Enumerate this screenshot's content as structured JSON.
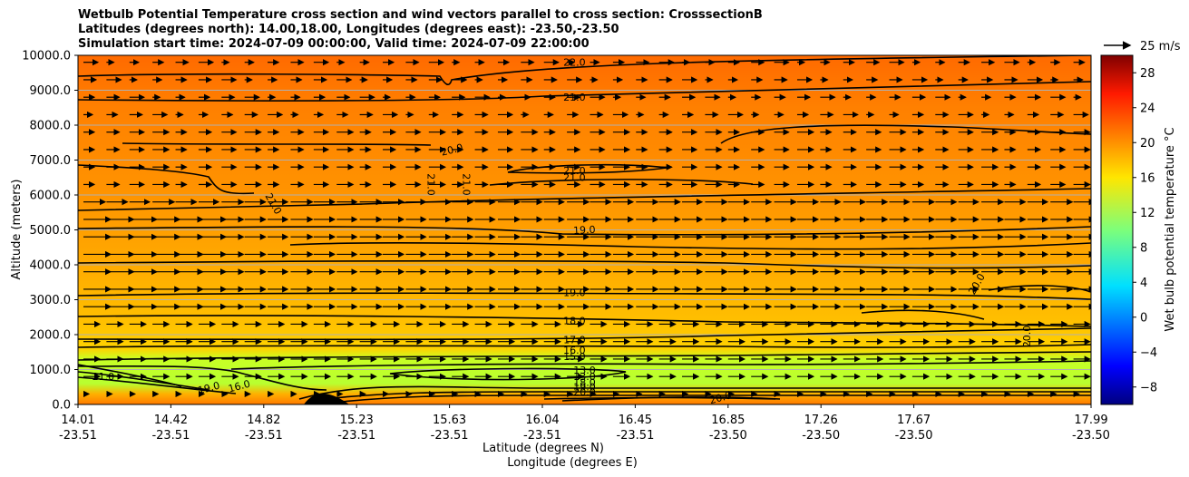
{
  "chart_data": {
    "type": "contour",
    "title_lines": [
      "Wetbulb Potential Temperature cross section and wind vectors parallel to cross section: CrosssectionB",
      "Latitudes (degrees north): 14.00,18.00, Longitudes (degrees east): -23.50,-23.50",
      "Simulation start time: 2024-07-09 00:00:00, Valid time: 2024-07-09 22:00:00"
    ],
    "ylabel": "Altitude (meters)",
    "xlabel_lat": "Latitude (degrees N)",
    "xlabel_lon": "Longitude (degrees E)",
    "ylim": [
      0,
      10000
    ],
    "y_ticks": [
      "0.0",
      "1000.0",
      "2000.0",
      "3000.0",
      "4000.0",
      "5000.0",
      "6000.0",
      "7000.0",
      "8000.0",
      "9000.0",
      "10000.0"
    ],
    "x_ticks": [
      {
        "lat": "14.01",
        "lon": "-23.51"
      },
      {
        "lat": "14.42",
        "lon": "-23.51"
      },
      {
        "lat": "14.82",
        "lon": "-23.51"
      },
      {
        "lat": "15.23",
        "lon": "-23.51"
      },
      {
        "lat": "15.63",
        "lon": "-23.51"
      },
      {
        "lat": "16.04",
        "lon": "-23.51"
      },
      {
        "lat": "16.45",
        "lon": "-23.51"
      },
      {
        "lat": "16.85",
        "lon": "-23.50"
      },
      {
        "lat": "17.26",
        "lon": "-23.50"
      },
      {
        "lat": "17.67",
        "lon": "-23.50"
      },
      {
        "lat": "17.99",
        "lon": "-23.50"
      }
    ],
    "colorbar": {
      "label": "Wet bulb potential temperature °C",
      "range": [
        -10,
        30
      ],
      "ticks": [
        "−8",
        "−4",
        "0",
        "4",
        "8",
        "12",
        "16",
        "20",
        "24",
        "28"
      ],
      "tick_values": [
        -8,
        -4,
        0,
        4,
        8,
        12,
        16,
        20,
        24,
        28
      ],
      "colormap": "jet"
    },
    "vector_key": "25 m/s",
    "contour_labels": [
      {
        "text": "22.0",
        "x": 0.49,
        "alt": 9700,
        "rot": 0
      },
      {
        "text": "21.0",
        "x": 0.49,
        "alt": 8700,
        "rot": 0
      },
      {
        "text": "20.0",
        "x": 0.37,
        "alt": 7200,
        "rot": -14
      },
      {
        "text": "21.0",
        "x": 0.345,
        "alt": 6300,
        "rot": 90
      },
      {
        "text": "21.0",
        "x": 0.38,
        "alt": 6300,
        "rot": 90
      },
      {
        "text": "21.0",
        "x": 0.49,
        "alt": 6600,
        "rot": 0
      },
      {
        "text": "21.0",
        "x": 0.49,
        "alt": 6400,
        "rot": 0
      },
      {
        "text": "21.0",
        "x": 0.19,
        "alt": 5700,
        "rot": 60
      },
      {
        "text": "19.0",
        "x": 0.5,
        "alt": 4900,
        "rot": -3
      },
      {
        "text": "20.0",
        "x": 0.89,
        "alt": 3400,
        "rot": -60
      },
      {
        "text": "19.0",
        "x": 0.49,
        "alt": 3100,
        "rot": 0
      },
      {
        "text": "18.0",
        "x": 0.49,
        "alt": 2300,
        "rot": 0
      },
      {
        "text": "20.0",
        "x": 0.94,
        "alt": 1950,
        "rot": -90
      },
      {
        "text": "17.0",
        "x": 0.49,
        "alt": 1750,
        "rot": 0
      },
      {
        "text": "16.0",
        "x": 0.49,
        "alt": 1450,
        "rot": 0
      },
      {
        "text": "15.0",
        "x": 0.49,
        "alt": 1270,
        "rot": 0
      },
      {
        "text": "13.0",
        "x": 0.5,
        "alt": 880,
        "rot": 0
      },
      {
        "text": "13.0",
        "x": 0.5,
        "alt": 700,
        "rot": 0
      },
      {
        "text": "18.0",
        "x": 0.5,
        "alt": 530,
        "rot": 0
      },
      {
        "text": "19.0",
        "x": 0.5,
        "alt": 400,
        "rot": 0
      },
      {
        "text": "20.0",
        "x": 0.5,
        "alt": 260,
        "rot": 0
      },
      {
        "text": "21.0",
        "x": 0.025,
        "alt": 700,
        "rot": 0
      },
      {
        "text": "19.0",
        "x": 0.13,
        "alt": 380,
        "rot": -15
      },
      {
        "text": "16.0",
        "x": 0.16,
        "alt": 430,
        "rot": -15
      },
      {
        "text": "20.0",
        "x": 0.635,
        "alt": 100,
        "rot": -15
      }
    ]
  }
}
